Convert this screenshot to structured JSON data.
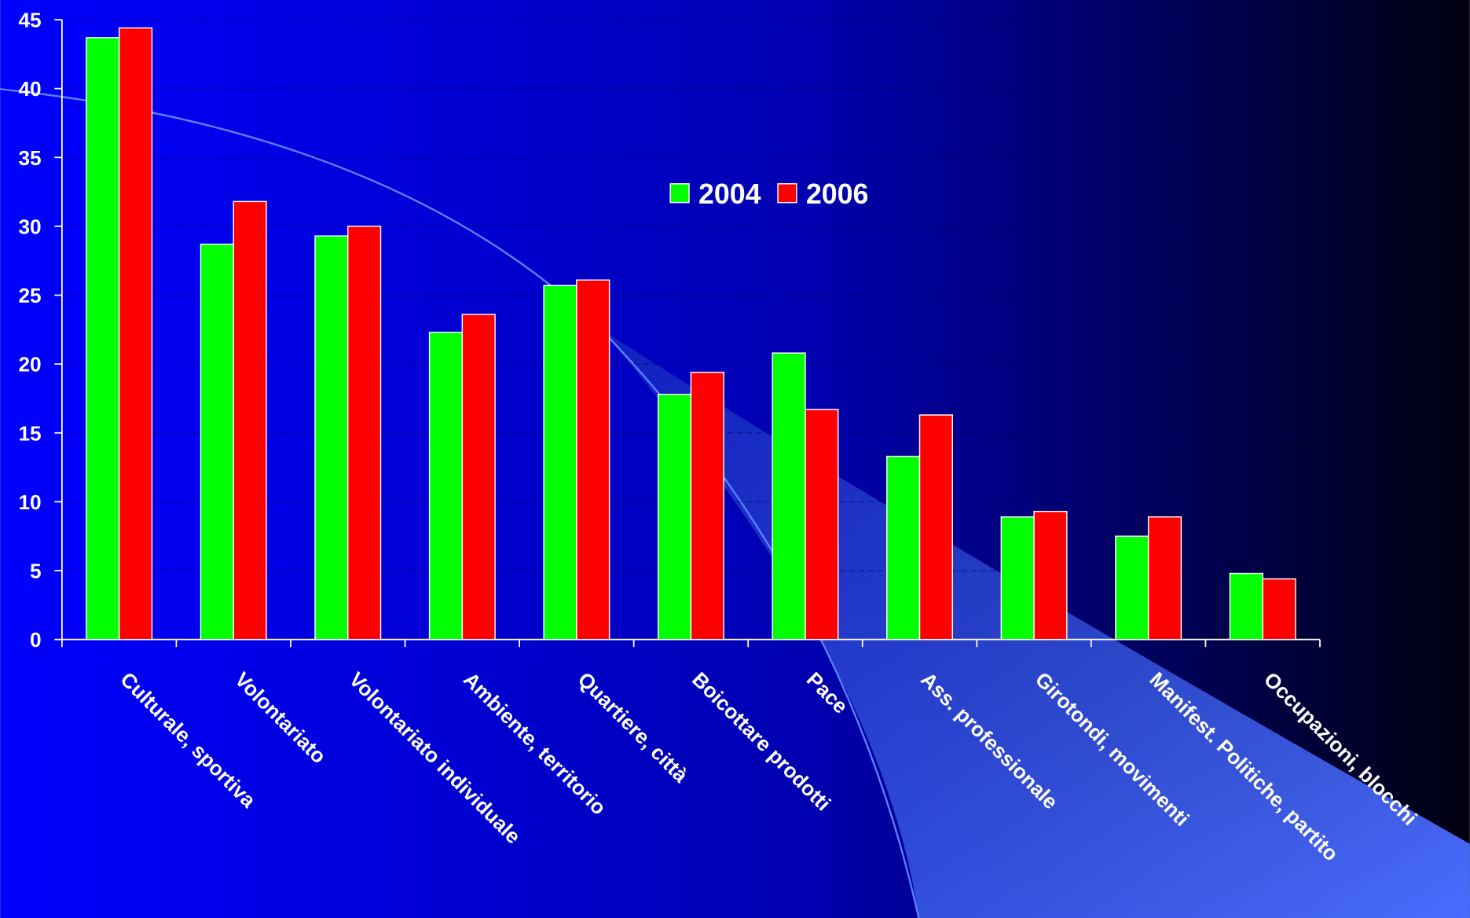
{
  "chart_data": {
    "type": "bar",
    "categories": [
      "Culturale, sportiva",
      "Volontariato",
      "Volontariato individuale",
      "Ambiente, territorio",
      "Quartiere, città",
      "Boicottare prodotti",
      "Pace",
      "Ass. professionale",
      "Girotondi, movimenti",
      "Manifest. Politiche, partito",
      "Occupazioni, blocchi"
    ],
    "series": [
      {
        "name": "2004",
        "color": "#00ff00",
        "values": [
          43.7,
          28.7,
          29.3,
          22.3,
          25.7,
          17.8,
          20.8,
          13.3,
          8.9,
          7.5,
          4.8
        ]
      },
      {
        "name": "2006",
        "color": "#ff0000",
        "values": [
          44.4,
          31.8,
          30.0,
          23.6,
          26.1,
          19.4,
          16.7,
          16.3,
          9.3,
          8.9,
          4.4
        ]
      }
    ],
    "ylim": [
      0,
      45
    ],
    "yticks": [
      0,
      5,
      10,
      15,
      20,
      25,
      30,
      35,
      40,
      45
    ],
    "grid": true
  }
}
